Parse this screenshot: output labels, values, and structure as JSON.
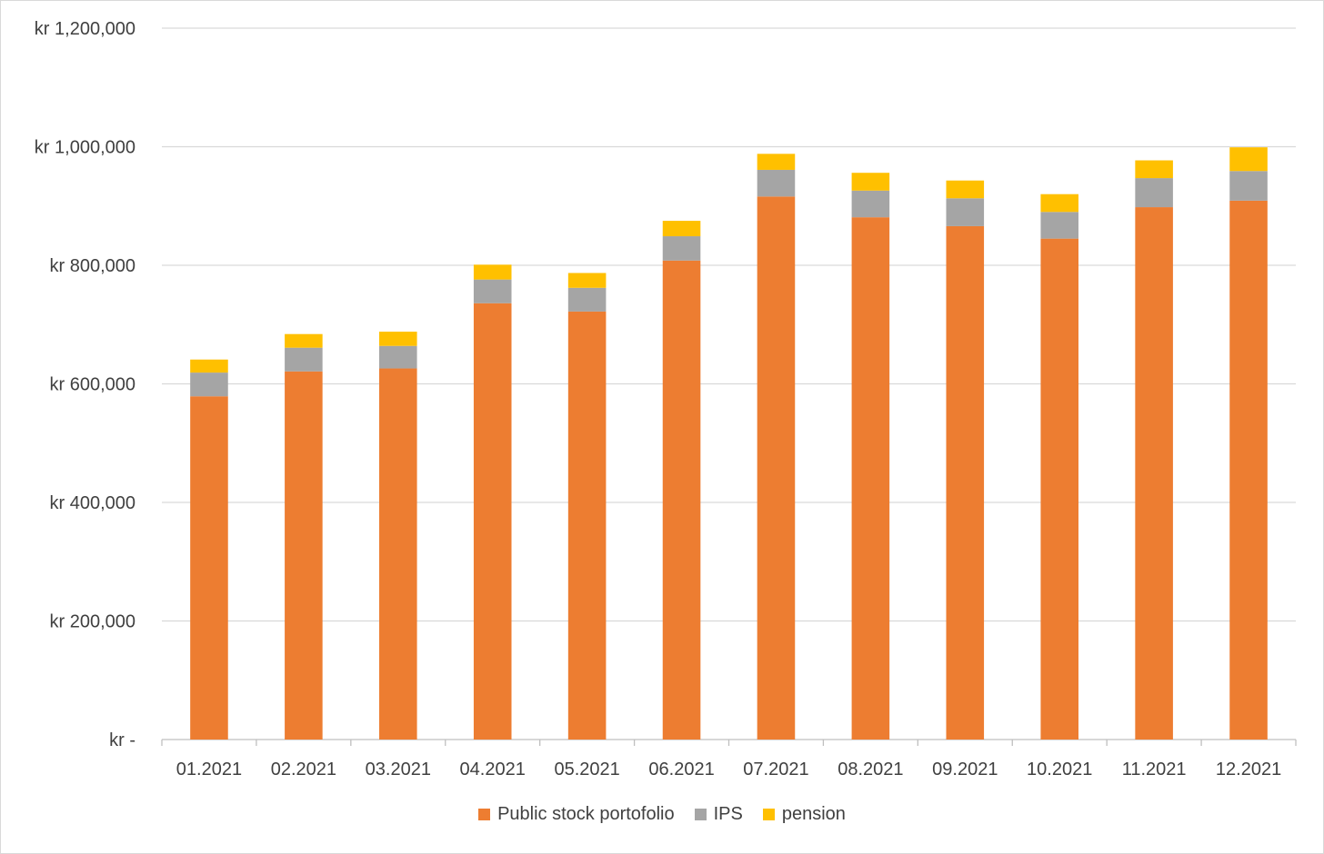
{
  "chart_data": {
    "type": "bar",
    "stacked": true,
    "categories": [
      "01.2021",
      "02.2021",
      "03.2021",
      "04.2021",
      "05.2021",
      "06.2021",
      "07.2021",
      "08.2021",
      "09.2021",
      "10.2021",
      "11.2021",
      "12.2021"
    ],
    "series": [
      {
        "name": "Public stock portofolio",
        "color": "#ED7D31",
        "values": [
          579000,
          621000,
          626000,
          736000,
          722000,
          808000,
          916000,
          881000,
          866000,
          845000,
          898000,
          909000
        ]
      },
      {
        "name": "IPS",
        "color": "#A5A5A5",
        "values": [
          40000,
          40000,
          38000,
          40000,
          40000,
          41000,
          45000,
          45000,
          47000,
          45000,
          49000,
          50000
        ]
      },
      {
        "name": "pension",
        "color": "#FFC000",
        "values": [
          22000,
          23000,
          24000,
          25000,
          25000,
          26000,
          27000,
          30000,
          30000,
          30000,
          30000,
          40000
        ]
      }
    ],
    "ylim": [
      0,
      1200000
    ],
    "yticks": [
      0,
      200000,
      400000,
      600000,
      800000,
      1000000,
      1200000
    ],
    "ytick_labels": [
      "kr -",
      "kr 200,000",
      "kr 400,000",
      "kr 600,000",
      "kr 800,000",
      "kr 1,000,000",
      "kr 1,200,000"
    ],
    "title": "",
    "xlabel": "",
    "ylabel": "",
    "grid": true,
    "legend_position": "bottom"
  }
}
